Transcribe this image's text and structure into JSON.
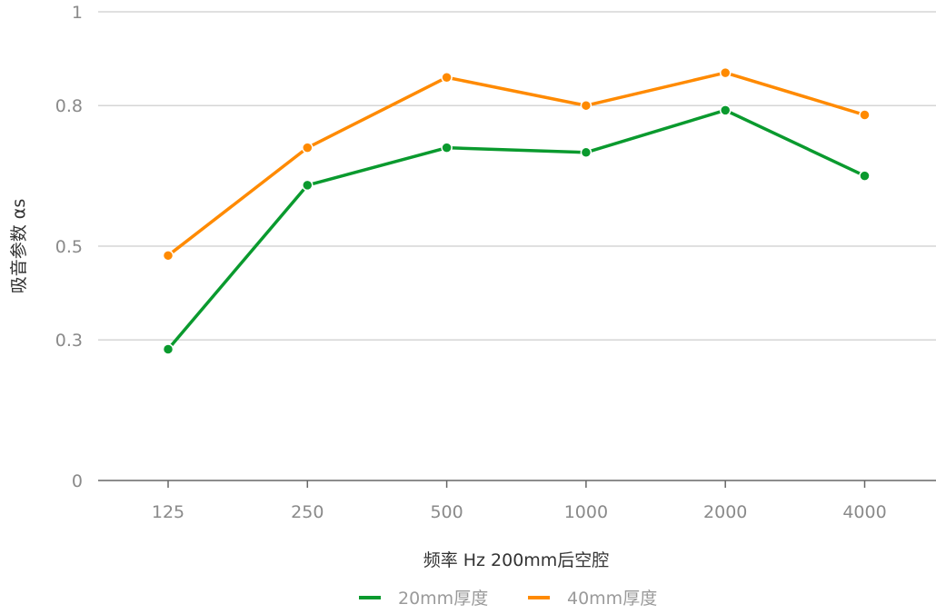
{
  "chart_data": {
    "type": "line",
    "title": "",
    "xlabel": "频率 Hz  200mm后空腔",
    "ylabel": "吸音参数 αs",
    "categories": [
      "125",
      "250",
      "500",
      "1000",
      "2000",
      "4000"
    ],
    "yticks": [
      0,
      0.3,
      0.5,
      0.8,
      1
    ],
    "ytick_labels": [
      "0",
      "0.3",
      "0.5",
      "0.8",
      "1"
    ],
    "ylim": [
      0,
      1
    ],
    "grid": true,
    "legend_position": "bottom",
    "series": [
      {
        "name": "20mm厚度",
        "color": "#0a9a2e",
        "values": [
          0.28,
          0.63,
          0.71,
          0.7,
          0.79,
          0.65
        ]
      },
      {
        "name": "40mm厚度",
        "color": "#ff8a00",
        "values": [
          0.48,
          0.71,
          0.86,
          0.8,
          0.87,
          0.78
        ]
      }
    ]
  }
}
